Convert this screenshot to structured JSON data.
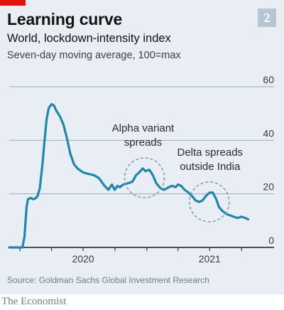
{
  "header": {
    "title": "Learning curve",
    "subtitle": "World, lockdown-intensity index",
    "subtitle2": "Seven-day moving average, 100=max",
    "badge": "2"
  },
  "colors": {
    "line": "#1f86ad",
    "accent": "#e3120b",
    "background": "#e8eef3",
    "grid": "#98aebd"
  },
  "chart_data": {
    "type": "line",
    "title": "Learning curve",
    "ylim": [
      0,
      60
    ],
    "yticks": [
      0,
      20,
      40,
      60
    ],
    "xticks": [
      "2020",
      "2021"
    ],
    "grid": true,
    "series": [
      {
        "values": [
          [
            "2019-12-01",
            0
          ],
          [
            "2020-01-08",
            0
          ],
          [
            "2020-01-14",
            4
          ],
          [
            "2020-01-20",
            15
          ],
          [
            "2020-01-24",
            18
          ],
          [
            "2020-02-01",
            18.5
          ],
          [
            "2020-02-08",
            18
          ],
          [
            "2020-02-14",
            18.3
          ],
          [
            "2020-02-20",
            19
          ],
          [
            "2020-02-27",
            22
          ],
          [
            "2020-03-05",
            30
          ],
          [
            "2020-03-12",
            40
          ],
          [
            "2020-03-18",
            48
          ],
          [
            "2020-03-24",
            52
          ],
          [
            "2020-04-01",
            53.5
          ],
          [
            "2020-04-08",
            53
          ],
          [
            "2020-04-15",
            51
          ],
          [
            "2020-04-25",
            49
          ],
          [
            "2020-05-05",
            46
          ],
          [
            "2020-05-15",
            41
          ],
          [
            "2020-05-25",
            35
          ],
          [
            "2020-06-05",
            31
          ],
          [
            "2020-06-15",
            29.5
          ],
          [
            "2020-07-01",
            28
          ],
          [
            "2020-07-15",
            27.5
          ],
          [
            "2020-08-01",
            27
          ],
          [
            "2020-08-15",
            26
          ],
          [
            "2020-09-01",
            23
          ],
          [
            "2020-09-12",
            21.5
          ],
          [
            "2020-09-22",
            23.5
          ],
          [
            "2020-09-30",
            21.5
          ],
          [
            "2020-10-08",
            23
          ],
          [
            "2020-10-15",
            22.5
          ],
          [
            "2020-10-25",
            23.5
          ],
          [
            "2020-11-08",
            24
          ],
          [
            "2020-11-20",
            24.5
          ],
          [
            "2020-12-01",
            27
          ],
          [
            "2020-12-10",
            28
          ],
          [
            "2020-12-20",
            29.5
          ],
          [
            "2020-12-28",
            28.5
          ],
          [
            "2021-01-08",
            29
          ],
          [
            "2021-01-18",
            27
          ],
          [
            "2021-01-28",
            24
          ],
          [
            "2021-02-10",
            22
          ],
          [
            "2021-02-20",
            21.5
          ],
          [
            "2021-03-05",
            22.5
          ],
          [
            "2021-03-15",
            23
          ],
          [
            "2021-03-25",
            22.5
          ],
          [
            "2021-04-01",
            23.5
          ],
          [
            "2021-04-10",
            23
          ],
          [
            "2021-04-20",
            21.5
          ],
          [
            "2021-05-01",
            20.5
          ],
          [
            "2021-05-12",
            19
          ],
          [
            "2021-05-22",
            17.5
          ],
          [
            "2021-06-01",
            17
          ],
          [
            "2021-06-10",
            17.5
          ],
          [
            "2021-06-22",
            19.5
          ],
          [
            "2021-07-01",
            20.5
          ],
          [
            "2021-07-10",
            20.5
          ],
          [
            "2021-07-20",
            18
          ],
          [
            "2021-07-28",
            15
          ],
          [
            "2021-08-08",
            13.5
          ],
          [
            "2021-08-18",
            12.5
          ],
          [
            "2021-08-28",
            12
          ],
          [
            "2021-09-08",
            11.5
          ],
          [
            "2021-09-20",
            11
          ],
          [
            "2021-10-01",
            11.5
          ],
          [
            "2021-10-12",
            11
          ],
          [
            "2021-10-20",
            10.5
          ]
        ]
      }
    ],
    "annotations": [
      {
        "lines": [
          "Alpha variant",
          "spreads"
        ],
        "date": "2020-12-25",
        "value": 26
      },
      {
        "lines": [
          "Delta spreads",
          "outside India"
        ],
        "date": "2021-06-30",
        "value": 17
      }
    ]
  },
  "source": "Source: Goldman Sachs Global Investment Research",
  "footer": "The Economist"
}
